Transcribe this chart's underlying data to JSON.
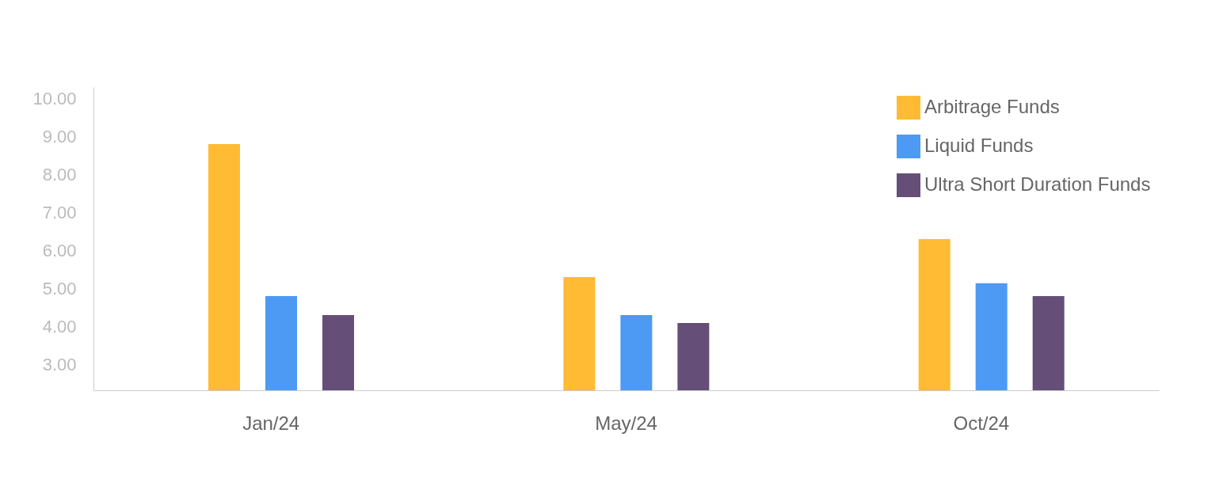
{
  "chart_data": {
    "type": "bar",
    "categories": [
      "Jan/24",
      "May/24",
      "Oct/24"
    ],
    "series": [
      {
        "name": "Arbitrage Funds",
        "color": "#ffbb33",
        "values": [
          8.81,
          5.31,
          6.31
        ]
      },
      {
        "name": "Liquid Funds",
        "color": "#4d9af5",
        "values": [
          4.81,
          4.31,
          5.15
        ]
      },
      {
        "name": "Ultra Short Duration Funds",
        "color": "#654f78",
        "values": [
          4.31,
          4.1,
          4.81
        ]
      }
    ],
    "ylim": [
      2.33,
      10.31
    ],
    "yticks": [
      {
        "value": 3,
        "label": "3.00"
      },
      {
        "value": 4,
        "label": "4.00"
      },
      {
        "value": 5,
        "label": "5.00"
      },
      {
        "value": 6,
        "label": "6.00"
      },
      {
        "value": 7,
        "label": "7.00"
      },
      {
        "value": 8,
        "label": "8.00"
      },
      {
        "value": 9,
        "label": "9.00"
      },
      {
        "value": 10,
        "label": "10.00"
      }
    ],
    "grid": false,
    "legend": "top right"
  }
}
